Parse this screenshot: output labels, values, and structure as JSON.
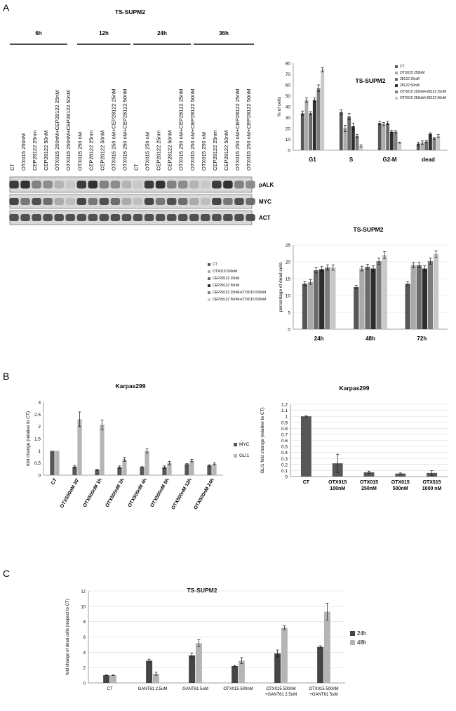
{
  "panels": {
    "a": "A",
    "b": "B",
    "c": "C"
  },
  "blot": {
    "title": "TS-SUPM2",
    "time_groups": [
      "6h",
      "12h",
      "24h",
      "36h"
    ],
    "lanes": [
      "CT",
      "OTX015 250nM",
      "CEP28122 25nm",
      "CEP28122 50nM",
      "OTX015 250nM+CEP28122 25nM",
      "OTX015 250nM+CEP28122 50nM",
      "OTX015 250 nM",
      "CEP28122 25nm",
      "CEP28122 50nM",
      "OTX015 250 nM+CEP28122 25nM",
      "OTX015 250 nM+CEP28122 50nM",
      "CT",
      "OTX015 250 nM",
      "CEP28122 25nm",
      "CEP28122 50nM",
      "OTX015 250 nM+CEP28122 25nM",
      "OTX015 250 nM+CEP28122 50nM",
      "OTX015 250 nM",
      "CEP28122 25nm",
      "CEP28122 50nM",
      "OTX015 250 nM+CEP28122 25nM",
      "OTX015 250 nM+CEP28122 50nM"
    ],
    "rows": [
      "pALK",
      "MYC",
      "ACT"
    ]
  },
  "chart_data": [
    {
      "id": "a1",
      "type": "bar",
      "title": "TS-SUPM2",
      "ylabel": "% of cells",
      "categories": [
        "G1",
        "S",
        "G2-M",
        "dead"
      ],
      "ylim": [
        0,
        80
      ],
      "yticks": [
        0,
        10,
        20,
        30,
        40,
        50,
        60,
        70,
        80
      ],
      "legend": [
        "CT",
        "OTX015 250nM",
        "28122 25nM",
        "28122 50nM",
        "OTX015 250nM+28122 25nM",
        "OTX015 250nM+28122 50nM"
      ],
      "colors": [
        "#575757",
        "#a9a9a9",
        "#6b6b6b",
        "#2e2e2e",
        "#7d7d7d",
        "#c8c8c8"
      ],
      "series": [
        {
          "values": [
            34,
            35,
            25,
            6
          ],
          "errors": [
            2,
            2,
            1.5,
            1.5
          ]
        },
        {
          "values": [
            46,
            20,
            24,
            7
          ],
          "errors": [
            2,
            3,
            1.5,
            1.5
          ]
        },
        {
          "values": [
            34,
            31,
            25,
            8
          ],
          "errors": [
            1.5,
            3,
            1.5,
            1
          ]
        },
        {
          "values": [
            46,
            22,
            17,
            15
          ],
          "errors": [
            2,
            3,
            1.5,
            1
          ]
        },
        {
          "values": [
            57,
            13,
            17,
            11
          ],
          "errors": [
            3,
            1.5,
            1,
            1
          ]
        },
        {
          "values": [
            74,
            4,
            7,
            13
          ],
          "errors": [
            2,
            1,
            0.5,
            1.5
          ]
        }
      ]
    },
    {
      "id": "a2",
      "type": "bar",
      "title": "TS-SUPM2",
      "ylabel": "percentage of dead cells",
      "categories": [
        "24h",
        "48h",
        "72h"
      ],
      "ylim": [
        0,
        25
      ],
      "yticks": [
        0,
        5,
        10,
        15,
        20,
        25
      ],
      "legend": [
        "CT",
        "OTX015 500nM",
        "CEP28122 25nM",
        "CEP28122 50nM",
        "CEP28122 25nM+OTX015 500nM",
        "CEP28122 50nM+OTX015 500nM"
      ],
      "colors": [
        "#575757",
        "#a9a9a9",
        "#6b6b6b",
        "#2e2e2e",
        "#7d7d7d",
        "#c8c8c8"
      ],
      "series": [
        {
          "values": [
            13.5,
            12.5,
            13.5
          ],
          "errors": [
            0.6,
            0.5,
            0.6
          ]
        },
        {
          "values": [
            14,
            18,
            19
          ],
          "errors": [
            0.7,
            0.7,
            0.8
          ]
        },
        {
          "values": [
            17.5,
            18.5,
            19
          ],
          "errors": [
            0.8,
            0.8,
            0.8
          ]
        },
        {
          "values": [
            17.8,
            18,
            18
          ],
          "errors": [
            0.8,
            0.8,
            0.8
          ]
        },
        {
          "values": [
            18.3,
            20.2,
            20.2
          ],
          "errors": [
            0.8,
            0.9,
            0.9
          ]
        },
        {
          "values": [
            18.3,
            22,
            22.3
          ],
          "errors": [
            0.8,
            1,
            1
          ]
        }
      ]
    },
    {
      "id": "b1",
      "type": "bar",
      "title": "Karpas299",
      "ylabel": "fold change (relative to CT)",
      "categories": [
        "CT",
        "OTX500nM 30'",
        "OTX500nM 1h",
        "OTX500nM 2h",
        "OTX500nM 4h",
        "OTX500nM 6h",
        "OTX500nM 12h",
        "OTX500nM 24h"
      ],
      "ylim": [
        0,
        3
      ],
      "yticks": [
        0,
        0.5,
        1,
        1.5,
        2,
        2.5,
        3
      ],
      "colors": [
        "#575757",
        "#b5b5b5"
      ],
      "series": [
        {
          "name": "MYC",
          "values": [
            1,
            0.35,
            0.22,
            0.33,
            0.33,
            0.33,
            0.45,
            0.4
          ],
          "errors": [
            0,
            0.05,
            0.02,
            0.05,
            0.02,
            0.05,
            0.03,
            0.03
          ]
        },
        {
          "name": "GLI1",
          "values": [
            1,
            2.3,
            2.07,
            0.65,
            1,
            0.5,
            0.6,
            0.47
          ],
          "errors": [
            0,
            0.3,
            0.2,
            0.08,
            0.08,
            0.07,
            0.05,
            0.04
          ]
        }
      ]
    },
    {
      "id": "b2",
      "type": "bar",
      "title": "Karpas299",
      "ylabel": "GLI1 fold change (relative to CT)",
      "categories": [
        "CT",
        "OTX015 100nM",
        "OTX015 250nM",
        "OTX015 500nM",
        "OTX015 1000 nM"
      ],
      "ylim": [
        0,
        1.2
      ],
      "yticks": [
        0,
        0.1,
        0.2,
        0.3,
        0.4,
        0.5,
        0.6,
        0.7,
        0.8,
        0.9,
        1,
        1.1,
        1.2
      ],
      "colors": [
        "#575757"
      ],
      "series": [
        {
          "values": [
            1,
            0.22,
            0.07,
            0.05,
            0.06
          ],
          "errors": [
            0.01,
            0.15,
            0.02,
            0.01,
            0.04
          ]
        }
      ]
    },
    {
      "id": "c1",
      "type": "bar",
      "title": "TS-SUPM2",
      "ylabel": "fold change of dead cells (respect to CT)",
      "categories": [
        "CT",
        "GANT61 2,5uM",
        "GANT61 5uM",
        "OTX015 500nM",
        "OTX015 500nM +GANT61 2,5uM",
        "OTX015 500nM +GANT61 5uM"
      ],
      "ylim": [
        0,
        12
      ],
      "yticks": [
        0,
        2,
        4,
        6,
        8,
        10,
        12
      ],
      "colors": [
        "#454545",
        "#b5b5b5"
      ],
      "series": [
        {
          "name": "24h",
          "values": [
            1,
            2.9,
            3.6,
            2.2,
            3.85,
            4.7
          ],
          "errors": [
            0.05,
            0.2,
            0.3,
            0.1,
            0.45,
            0.15
          ]
        },
        {
          "name": "48h",
          "values": [
            1,
            1.2,
            5.2,
            2.9,
            7.2,
            9.3
          ],
          "errors": [
            0.05,
            0.2,
            0.45,
            0.4,
            0.25,
            1.1
          ]
        }
      ]
    }
  ]
}
